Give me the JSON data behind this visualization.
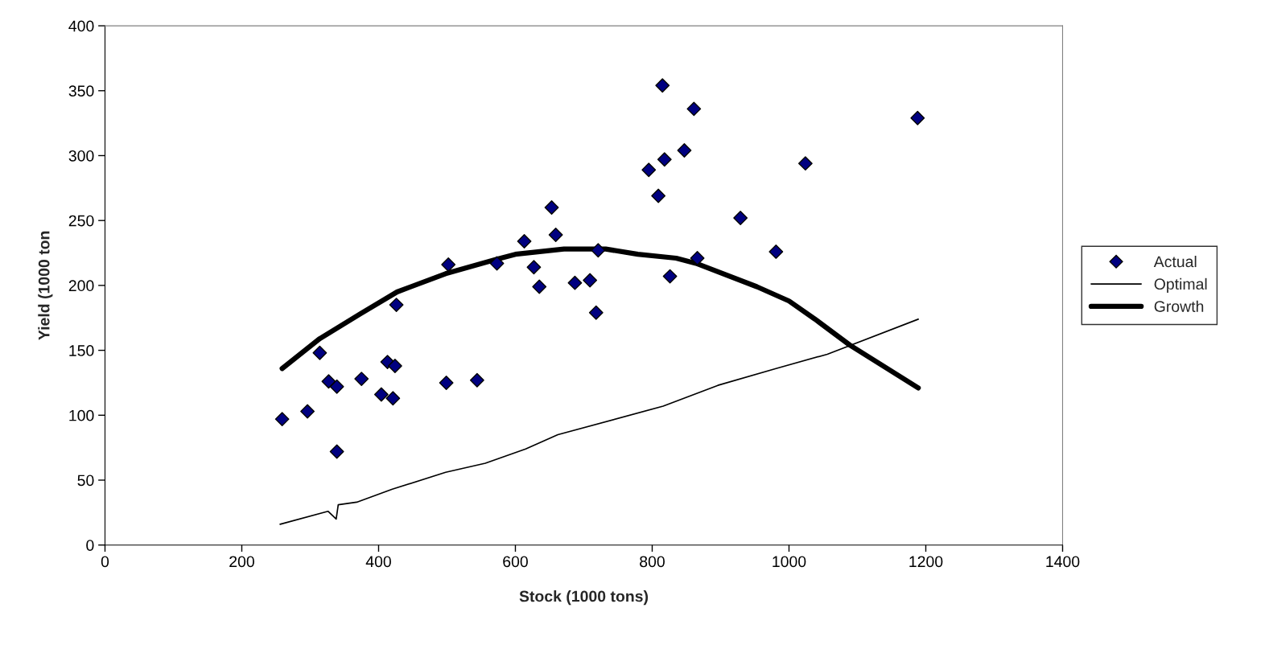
{
  "chart_data": {
    "type": "scatter",
    "xlabel": "Stock (1000 tons)",
    "ylabel": "Yield (1000 ton",
    "xlim": [
      0,
      1400
    ],
    "ylim": [
      0,
      400
    ],
    "xticks": [
      0,
      200,
      400,
      600,
      800,
      1000,
      1200,
      1400
    ],
    "yticks": [
      0,
      50,
      100,
      150,
      200,
      250,
      300,
      350,
      400
    ],
    "grid": false,
    "legend": "right",
    "series": [
      {
        "name": "Actual",
        "marker": "diamond",
        "color": "#000080",
        "x": [
          259,
          296,
          314,
          327,
          339,
          339,
          375,
          404,
          413,
          421,
          424,
          426,
          499,
          502,
          544,
          573,
          613,
          627,
          635,
          653,
          659,
          687,
          709,
          718,
          721,
          795,
          809,
          815,
          818,
          826,
          847,
          861,
          866,
          929,
          981,
          1024,
          1188
        ],
        "values": [
          97,
          103,
          148,
          126,
          122,
          72,
          128,
          116,
          141,
          113,
          138,
          185,
          125,
          216,
          127,
          217,
          234,
          214,
          199,
          260,
          239,
          202,
          204,
          179,
          227,
          289,
          269,
          354,
          297,
          207,
          304,
          336,
          221,
          252,
          226,
          294,
          329
        ]
      },
      {
        "name": "Optimal",
        "type": "line",
        "line_style": "solid",
        "color": "#000000",
        "x": [
          256,
          326,
          338,
          341,
          368,
          420,
          498,
          556,
          615,
          662,
          816,
          896,
          981,
          1056,
          1189
        ],
        "values": [
          16,
          26,
          20,
          31,
          33,
          43,
          56,
          63,
          74,
          85,
          107,
          123,
          136,
          147,
          174
        ]
      },
      {
        "name": "Growth",
        "type": "line",
        "line_style": "solid",
        "color": "#000000",
        "x": [
          259,
          314,
          373,
          427,
          498,
          572,
          600,
          671,
          732,
          779,
          835,
          864,
          953,
          1000,
          1038,
          1089,
          1189
        ],
        "values": [
          136,
          159,
          178,
          195,
          209,
          220,
          224,
          228,
          228,
          224,
          221,
          217,
          199,
          188,
          174,
          154,
          121
        ]
      }
    ]
  }
}
